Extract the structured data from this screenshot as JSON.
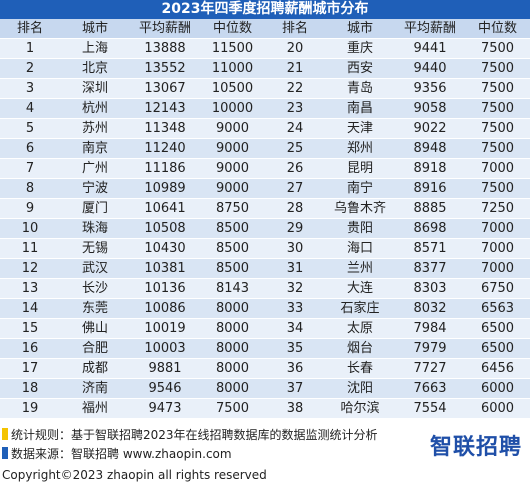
{
  "title": "2023年四季度招聘薪酬城市分布",
  "headers": [
    "排名",
    "城市",
    "平均薪酬",
    "中位数",
    "排名",
    "城市",
    "平均薪酬",
    "中位数"
  ],
  "rows": [
    [
      [
        "1",
        "上海",
        "13888",
        "11500"
      ],
      [
        "20",
        "重庆",
        "9441",
        "7500"
      ]
    ],
    [
      [
        "2",
        "北京",
        "13552",
        "11000"
      ],
      [
        "21",
        "西安",
        "9440",
        "7500"
      ]
    ],
    [
      [
        "3",
        "深圳",
        "13067",
        "10500"
      ],
      [
        "22",
        "青岛",
        "9356",
        "7500"
      ]
    ],
    [
      [
        "4",
        "杭州",
        "12143",
        "10000"
      ],
      [
        "23",
        "南昌",
        "9058",
        "7500"
      ]
    ],
    [
      [
        "5",
        "苏州",
        "11348",
        "9000"
      ],
      [
        "24",
        "天津",
        "9022",
        "7500"
      ]
    ],
    [
      [
        "6",
        "南京",
        "11240",
        "9000"
      ],
      [
        "25",
        "郑州",
        "8948",
        "7500"
      ]
    ],
    [
      [
        "7",
        "广州",
        "11186",
        "9000"
      ],
      [
        "26",
        "昆明",
        "8918",
        "7000"
      ]
    ],
    [
      [
        "8",
        "宁波",
        "10989",
        "9000"
      ],
      [
        "27",
        "南宁",
        "8916",
        "7500"
      ]
    ],
    [
      [
        "9",
        "厦门",
        "10641",
        "8750"
      ],
      [
        "28",
        "乌鲁木齐",
        "8885",
        "7250"
      ]
    ],
    [
      [
        "10",
        "珠海",
        "10508",
        "8500"
      ],
      [
        "29",
        "贵阳",
        "8698",
        "7000"
      ]
    ],
    [
      [
        "11",
        "无锡",
        "10430",
        "8500"
      ],
      [
        "30",
        "海口",
        "8571",
        "7000"
      ]
    ],
    [
      [
        "12",
        "武汉",
        "10381",
        "8500"
      ],
      [
        "31",
        "兰州",
        "8377",
        "7000"
      ]
    ],
    [
      [
        "13",
        "长沙",
        "10136",
        "8143"
      ],
      [
        "32",
        "大连",
        "8303",
        "6750"
      ]
    ],
    [
      [
        "14",
        "东莞",
        "10086",
        "8000"
      ],
      [
        "33",
        "石家庄",
        "8032",
        "6563"
      ]
    ],
    [
      [
        "15",
        "佛山",
        "10019",
        "8000"
      ],
      [
        "34",
        "太原",
        "7984",
        "6500"
      ]
    ],
    [
      [
        "16",
        "合肥",
        "10003",
        "8000"
      ],
      [
        "35",
        "烟台",
        "7979",
        "6500"
      ]
    ],
    [
      [
        "17",
        "成都",
        "9881",
        "8000"
      ],
      [
        "36",
        "长春",
        "7727",
        "6456"
      ]
    ],
    [
      [
        "18",
        "济南",
        "9546",
        "8000"
      ],
      [
        "37",
        "沈阳",
        "7663",
        "6000"
      ]
    ],
    [
      [
        "19",
        "福州",
        "9473",
        "7500"
      ],
      [
        "38",
        "哈尔滨",
        "7554",
        "6000"
      ]
    ]
  ],
  "footer": {
    "rule": "统计规则：基于智联招聘2023年在线招聘数据库的数据监测统计分析",
    "source": "数据来源：智联招聘 www.zhaopin.com",
    "copyright": "Copyright©2023 zhaopin all rights reserved",
    "logo": "智联招聘"
  },
  "colors": {
    "title_bg": "#1f5fb8",
    "header_bg": "#c7d8ef",
    "row_bg": "#e9f0f9",
    "row_alt_bg": "#d9e5f4",
    "bullet_yellow": "#f4c300",
    "bullet_blue": "#1f5fb8"
  }
}
